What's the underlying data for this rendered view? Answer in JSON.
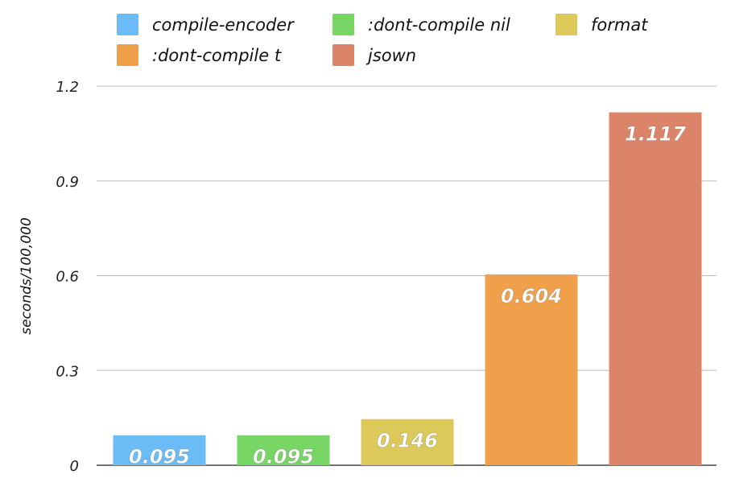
{
  "chart_data": {
    "type": "bar",
    "categories": [
      "compile-encoder",
      ":dont-compile nil",
      "format",
      ":dont-compile t",
      "jsown"
    ],
    "values": [
      0.095,
      0.095,
      0.146,
      0.604,
      1.117
    ],
    "data_labels": [
      "0.095",
      "0.095",
      "0.146",
      "0.604",
      "1.117"
    ],
    "colors": [
      "#6cbcf7",
      "#78d664",
      "#dcc95a",
      "#f0a04a",
      "#dc846a"
    ],
    "title": "",
    "xlabel": "",
    "ylabel": "seconds/100,000",
    "ylim": [
      0,
      1.2
    ],
    "yticks": [
      0,
      0.3,
      0.6,
      0.9,
      1.2
    ],
    "ytick_labels": [
      "0",
      "0.3",
      "0.6",
      "0.9",
      "1.2"
    ],
    "grid": true,
    "legend_position": "top"
  }
}
